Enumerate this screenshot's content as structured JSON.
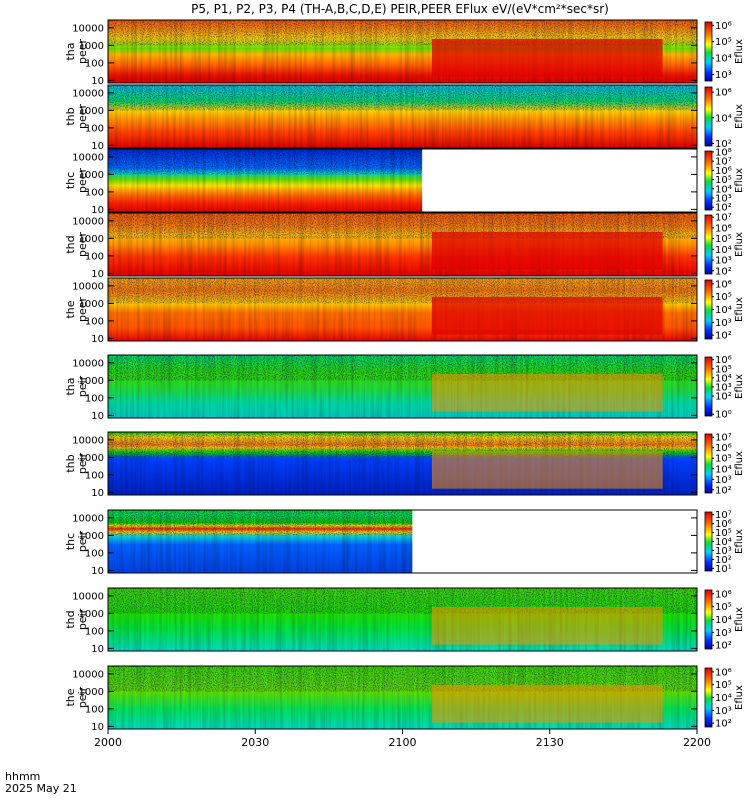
{
  "title": "P5, P1, P2, P3, P4 (TH-A,B,C,D,E) PEIR,PEER EFlux eV/(eV*cm²*sec*sr)",
  "time_axis": {
    "ticks": [
      "2000",
      "2030",
      "2100",
      "2130",
      "2200"
    ],
    "unit_label": "hhmm",
    "date_label": "2025 May 21"
  },
  "chart_data": {
    "type": "heatmap",
    "x_range_minutes": [
      0,
      120
    ],
    "y_scale": "log",
    "y_ticks": [
      "10",
      "100",
      "1000",
      "10000"
    ],
    "colorbar_label": "Eflux",
    "panels": [
      {
        "label": [
          "tha",
          "peer"
        ],
        "data_end_min": 120,
        "cb_ticks": [
          {
            "t": "10⁶",
            "v": 6
          },
          {
            "t": "10⁵",
            "v": 5
          },
          {
            "t": "10⁴",
            "v": 4
          },
          {
            "t": "10³",
            "v": 3
          }
        ],
        "cb_range": [
          2.6,
          6.2
        ]
      },
      {
        "label": [
          "thb",
          "peer"
        ],
        "data_end_min": 120,
        "cb_ticks": [
          {
            "t": "10⁶",
            "v": 6
          },
          {
            "t": "10⁴",
            "v": 4
          },
          {
            "t": "10²",
            "v": 2
          }
        ],
        "cb_range": [
          1.8,
          6.4
        ]
      },
      {
        "label": [
          "thc",
          "peer"
        ],
        "data_end_min": 64,
        "cb_ticks": [
          {
            "t": "10⁸",
            "v": 8
          },
          {
            "t": "10⁷",
            "v": 7
          },
          {
            "t": "10⁶",
            "v": 6
          },
          {
            "t": "10⁵",
            "v": 5
          },
          {
            "t": "10⁴",
            "v": 4
          },
          {
            "t": "10³",
            "v": 3
          },
          {
            "t": "10²",
            "v": 2
          }
        ],
        "cb_range": [
          1.7,
          8.1
        ]
      },
      {
        "label": [
          "thd",
          "peer"
        ],
        "data_end_min": 120,
        "cb_ticks": [
          {
            "t": "10⁷",
            "v": 7
          },
          {
            "t": "10⁶",
            "v": 6
          },
          {
            "t": "10⁵",
            "v": 5
          },
          {
            "t": "10⁴",
            "v": 4
          },
          {
            "t": "10³",
            "v": 3
          },
          {
            "t": "10²",
            "v": 2
          }
        ],
        "cb_range": [
          1.7,
          7.2
        ]
      },
      {
        "label": [
          "the",
          "peer"
        ],
        "data_end_min": 120,
        "cb_ticks": [
          {
            "t": "10⁶",
            "v": 6
          },
          {
            "t": "10⁵",
            "v": 5
          },
          {
            "t": "10⁴",
            "v": 4
          },
          {
            "t": "10³",
            "v": 3
          },
          {
            "t": "10²",
            "v": 2
          }
        ],
        "cb_range": [
          1.7,
          6.3
        ]
      },
      {
        "label": [
          "tha",
          "peir"
        ],
        "data_end_min": 120,
        "cb_ticks": [
          {
            "t": "10⁶",
            "v": 6
          },
          {
            "t": "10⁵",
            "v": 5
          },
          {
            "t": "10⁴",
            "v": 4
          },
          {
            "t": "10³",
            "v": 3
          },
          {
            "t": "10²",
            "v": 2
          },
          {
            "t": "10⁰",
            "v": 0
          }
        ],
        "cb_range": [
          -0.2,
          6.3
        ]
      },
      {
        "label": [
          "thb",
          "peir"
        ],
        "data_end_min": 120,
        "cb_ticks": [
          {
            "t": "10⁷",
            "v": 7
          },
          {
            "t": "10⁶",
            "v": 6
          },
          {
            "t": "10⁵",
            "v": 5
          },
          {
            "t": "10⁴",
            "v": 4
          },
          {
            "t": "10³",
            "v": 3
          },
          {
            "t": "10²",
            "v": 2
          }
        ],
        "cb_range": [
          1.7,
          7.3
        ]
      },
      {
        "label": [
          "thc",
          "peir"
        ],
        "data_end_min": 62,
        "cb_ticks": [
          {
            "t": "10⁷",
            "v": 7
          },
          {
            "t": "10⁶",
            "v": 6
          },
          {
            "t": "10⁵",
            "v": 5
          },
          {
            "t": "10⁴",
            "v": 4
          },
          {
            "t": "10³",
            "v": 3
          },
          {
            "t": "10²",
            "v": 2
          },
          {
            "t": "10¹",
            "v": 1
          }
        ],
        "cb_range": [
          0.7,
          7.3
        ]
      },
      {
        "label": [
          "thd",
          "peir"
        ],
        "data_end_min": 120,
        "cb_ticks": [
          {
            "t": "10⁶",
            "v": 6
          },
          {
            "t": "10⁵",
            "v": 5
          },
          {
            "t": "10⁴",
            "v": 4
          },
          {
            "t": "10³",
            "v": 3
          },
          {
            "t": "10²",
            "v": 2
          }
        ],
        "cb_range": [
          1.7,
          6.3
        ]
      },
      {
        "label": [
          "the",
          "peir"
        ],
        "data_end_min": 120,
        "cb_ticks": [
          {
            "t": "10⁶",
            "v": 6
          },
          {
            "t": "10⁵",
            "v": 5
          },
          {
            "t": "10⁴",
            "v": 4
          },
          {
            "t": "10³",
            "v": 3
          },
          {
            "t": "10²",
            "v": 2
          }
        ],
        "cb_range": [
          1.7,
          6.3
        ]
      }
    ]
  }
}
